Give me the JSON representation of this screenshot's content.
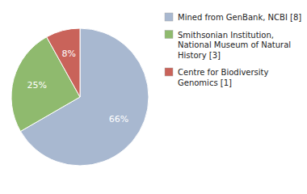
{
  "chart_data": {
    "type": "pie",
    "categories": [
      "Mined from GenBank, NCBI [8]",
      "Smithsonian Institution,\nNational Museum of Natural\nHistory [3]",
      "Centre for Biodiversity\nGenomics [1]"
    ],
    "values": [
      66,
      25,
      8
    ],
    "value_labels": [
      "66%",
      "25%",
      "8%"
    ],
    "colors": [
      "#a8b8d0",
      "#8fba6e",
      "#c9635a"
    ],
    "data_labels": true,
    "legend": "right"
  }
}
